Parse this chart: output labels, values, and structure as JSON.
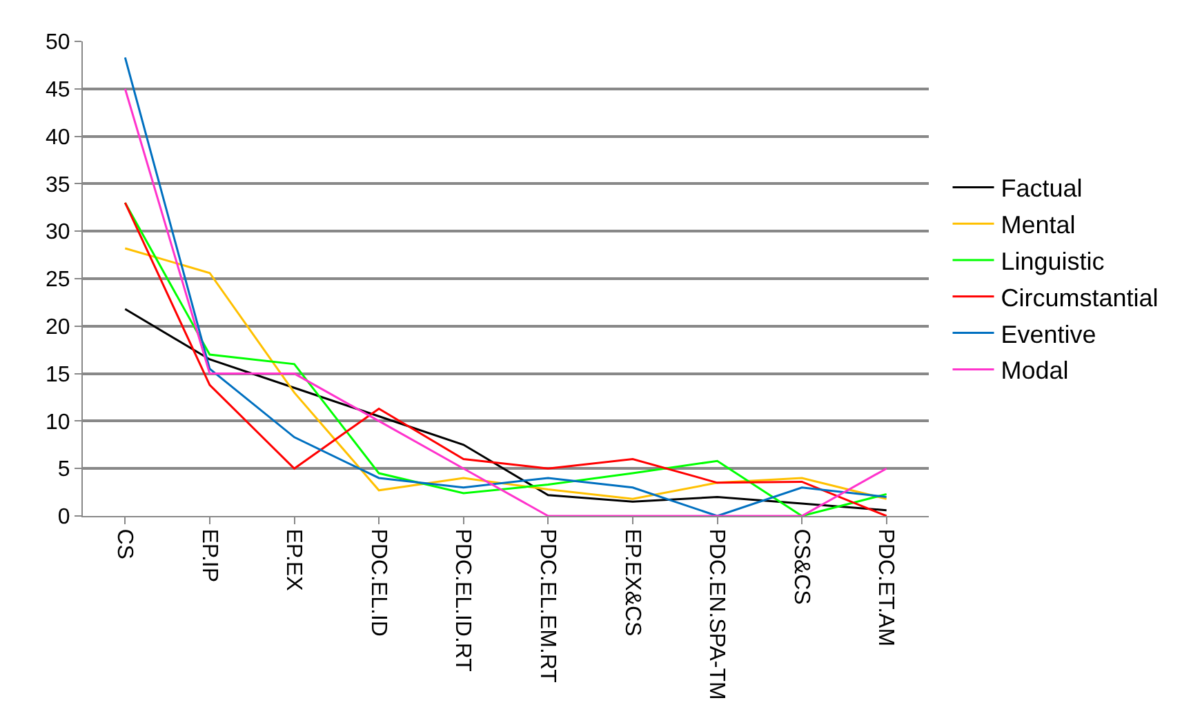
{
  "chart_data": {
    "type": "line",
    "categories": [
      "CS",
      "EP.IP",
      "EP.EX",
      "PDC.EL.ID",
      "PDC.EL.ID.RT",
      "PDC.EL.EM.RT",
      "EP.EX&CS",
      "PDC.EN.SPA-TM",
      "CS&CS",
      "PDC.ET.AM"
    ],
    "series": [
      {
        "name": "Factual",
        "color": "#000000",
        "values": [
          21.8,
          16.5,
          13.5,
          10.5,
          7.5,
          2.2,
          1.5,
          2,
          1.3,
          0.6
        ]
      },
      {
        "name": "Mental",
        "color": "#ffc000",
        "values": [
          28.2,
          25.6,
          13,
          2.7,
          4,
          2.8,
          1.8,
          3.5,
          4,
          1.8
        ]
      },
      {
        "name": "Linguistic",
        "color": "#00ff00",
        "values": [
          33,
          17,
          16,
          4.5,
          2.4,
          3.3,
          4.5,
          5.8,
          0,
          2.3
        ]
      },
      {
        "name": "Circumstantial",
        "color": "#ff0000",
        "values": [
          33,
          13.8,
          5,
          11.3,
          6,
          5,
          6,
          3.5,
          3.6,
          0
        ]
      },
      {
        "name": "Eventive",
        "color": "#0070c0",
        "values": [
          48.3,
          15.5,
          8.3,
          4,
          3,
          4,
          3,
          0,
          3,
          2
        ]
      },
      {
        "name": "Modal",
        "color": "#ff33cc",
        "values": [
          45,
          15,
          15,
          10,
          5,
          0,
          0,
          0,
          0,
          5
        ]
      }
    ],
    "ylim": [
      0,
      50
    ],
    "yticks": [
      0,
      5,
      10,
      15,
      20,
      25,
      30,
      35,
      40,
      45,
      50
    ],
    "grid": "y",
    "legend": "right",
    "marker": "none",
    "line_style": "solid"
  }
}
